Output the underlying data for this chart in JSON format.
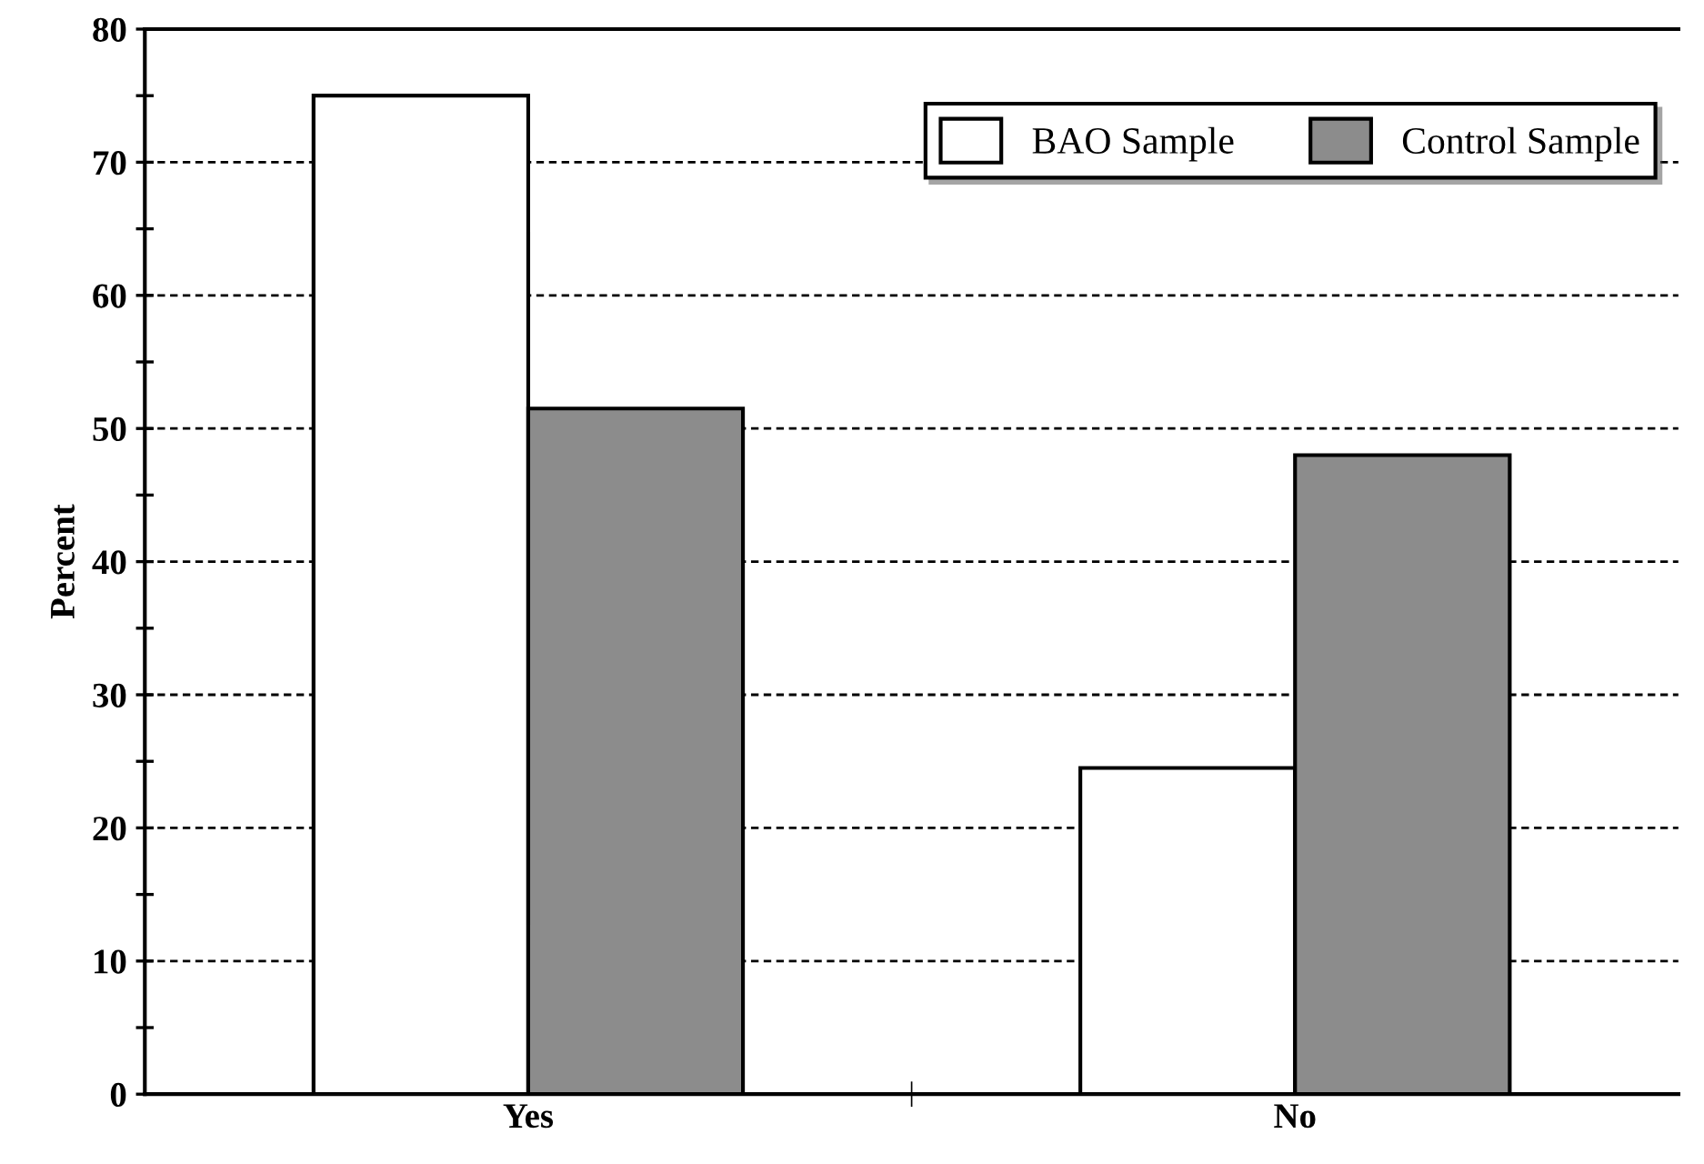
{
  "chart_data": {
    "type": "bar",
    "ylabel": "Percent",
    "categories": [
      "Yes",
      "No"
    ],
    "series": [
      {
        "name": "BAO Sample",
        "color": "#ffffff",
        "values": [
          75,
          24.5
        ]
      },
      {
        "name": "Control Sample",
        "color": "#8c8c8c",
        "values": [
          51.5,
          48
        ]
      }
    ],
    "ylim": [
      0,
      80
    ],
    "yticks": [
      0,
      {
        "value": 5,
        "label": null
      },
      10,
      {
        "value": 15,
        "label": null
      },
      20,
      {
        "value": 25,
        "label": null
      },
      30,
      {
        "value": 35,
        "label": null
      },
      40,
      {
        "value": 45,
        "label": null
      },
      50,
      {
        "value": 55,
        "label": null
      },
      60,
      {
        "value": 65,
        "label": null
      },
      70,
      {
        "value": 75,
        "label": null
      },
      80
    ],
    "grid": "y",
    "legend": "top right"
  }
}
